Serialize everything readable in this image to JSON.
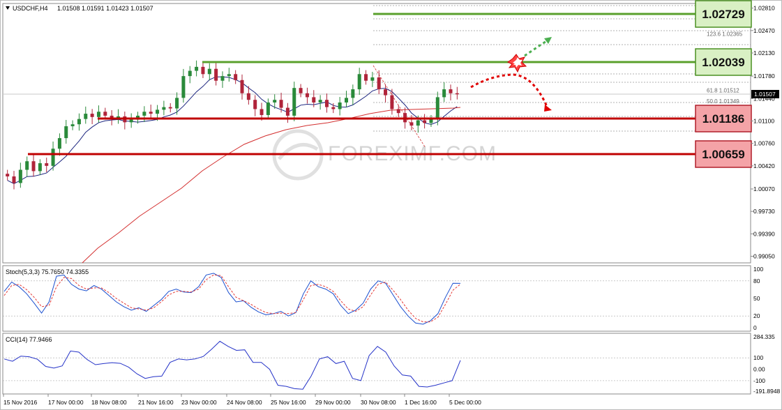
{
  "header": {
    "symbol": "USDCHF,H4",
    "ohlc": "1.01508 1.01591 1.01423 1.01507"
  },
  "watermark": "FOREXIMF.COM",
  "colors": {
    "support": "#c00000",
    "resistance": "#5aa02c",
    "bull_candle": "#2a8a3a",
    "bear_candle": "#b0243a",
    "ma_fast": "#1a237e",
    "ma_slow": "#d32f2f",
    "stoch_main": "#1a4fcf",
    "stoch_signal": "#e53935",
    "cci": "#2432c8"
  },
  "chart_data": [
    {
      "type": "candlestick",
      "symbol": "USDCHF",
      "timeframe": "H4",
      "ylim": [
        1.0,
        1.0286
      ],
      "price_ticks": [
        "1.02810",
        "1.02470",
        "1.02130",
        "1.01780",
        "1.01440",
        "1.01100",
        "1.00760",
        "1.00420",
        "1.00070",
        "0.99730",
        "0.99390",
        "0.99050"
      ],
      "current_price": "1.01507",
      "time_labels": [
        "15 Nov 2016",
        "17 Nov 00:00",
        "18 Nov 08:00",
        "21 Nov 16:00",
        "23 Nov 00:00",
        "24 Nov 08:00",
        "25 Nov 16:00",
        "29 Nov 00:00",
        "30 Nov 08:00",
        "1 Dec 16:00",
        "5 Dec 00:00"
      ],
      "levels": [
        {
          "label": "1.02729",
          "value": 1.02729,
          "kind": "resistance"
        },
        {
          "label": "1.02039",
          "value": 1.02039,
          "kind": "resistance"
        },
        {
          "label": "1.01186",
          "value": 1.01186,
          "kind": "support"
        },
        {
          "label": "1.00659",
          "value": 1.00659,
          "kind": "support"
        }
      ],
      "fibonacci": [
        {
          "label": "123.6",
          "value_label": "1.02365"
        },
        {
          "label": "61.8",
          "value_label": "1.01512"
        },
        {
          "label": "50.0",
          "value_label": "1.01349"
        }
      ],
      "closes": [
        1.0026,
        1.0016,
        1.0036,
        1.0049,
        1.0034,
        1.0046,
        1.0042,
        1.0068,
        1.0084,
        1.0102,
        1.0105,
        1.0113,
        1.0121,
        1.0116,
        1.0124,
        1.0118,
        1.0113,
        1.0117,
        1.0108,
        1.0112,
        1.0118,
        1.0124,
        1.0121,
        1.0127,
        1.0131,
        1.0129,
        1.0145,
        1.0178,
        1.0186,
        1.0192,
        1.0181,
        1.0189,
        1.0171,
        1.0178,
        1.0181,
        1.0172,
        1.0152,
        1.0142,
        1.0128,
        1.0119,
        1.0138,
        1.0142,
        1.013,
        1.0118,
        1.016,
        1.0152,
        1.0146,
        1.0138,
        1.0142,
        1.0131,
        1.0128,
        1.0138,
        1.0145,
        1.0158,
        1.0181,
        1.0171,
        1.0176,
        1.0158,
        1.0149,
        1.0128,
        1.0122,
        1.0108,
        1.0103,
        1.0111,
        1.0107,
        1.0113,
        1.0146,
        1.0158,
        1.0152,
        1.0151
      ]
    },
    {
      "type": "line",
      "title": "Stoch(5,3,3) 75.7650 74.3355",
      "ylim": [
        0,
        100
      ],
      "ticks": [
        "100",
        "80",
        "50",
        "20",
        "0"
      ],
      "series": [
        {
          "values": [
            62,
            78,
            70,
            58,
            42,
            25,
            44,
            88,
            90,
            74,
            66,
            63,
            72,
            66,
            55,
            44,
            36,
            30,
            34,
            28,
            38,
            48,
            62,
            66,
            61,
            60,
            70,
            90,
            93,
            86,
            60,
            44,
            46,
            35,
            27,
            22,
            24,
            28,
            20,
            26,
            58,
            80,
            70,
            66,
            58,
            38,
            24,
            30,
            42,
            66,
            80,
            76,
            56,
            36,
            20,
            8,
            6,
            12,
            24,
            52,
            76,
            75.765
          ]
        },
        {
          "values": [
            55,
            72,
            74,
            65,
            52,
            36,
            38,
            70,
            86,
            84,
            72,
            66,
            68,
            68,
            60,
            50,
            42,
            34,
            32,
            30,
            34,
            44,
            56,
            62,
            62,
            61,
            66,
            82,
            90,
            89,
            70,
            52,
            46,
            40,
            32,
            26,
            24,
            25,
            24,
            26,
            48,
            72,
            74,
            70,
            62,
            46,
            32,
            28,
            36,
            56,
            74,
            78,
            64,
            48,
            30,
            16,
            10,
            10,
            18,
            40,
            64,
            74.3355
          ]
        }
      ]
    },
    {
      "type": "line",
      "title": "CCI(14) 77.9466",
      "ylim": [
        -191.8948,
        284.335
      ],
      "ticks": [
        "284.335",
        "100",
        "0.00",
        "-100",
        "-191.8948"
      ],
      "series": [
        {
          "values": [
            90,
            70,
            115,
            110,
            88,
            25,
            10,
            30,
            160,
            150,
            85,
            40,
            50,
            58,
            52,
            18,
            -40,
            -80,
            -65,
            -60,
            60,
            90,
            82,
            90,
            112,
            175,
            245,
            200,
            165,
            170,
            60,
            60,
            0,
            -140,
            -150,
            -170,
            -175,
            -60,
            90,
            110,
            50,
            70,
            -80,
            -100,
            120,
            200,
            150,
            30,
            -50,
            -60,
            -150,
            -155,
            -140,
            -120,
            -100,
            78
          ]
        }
      ]
    }
  ]
}
